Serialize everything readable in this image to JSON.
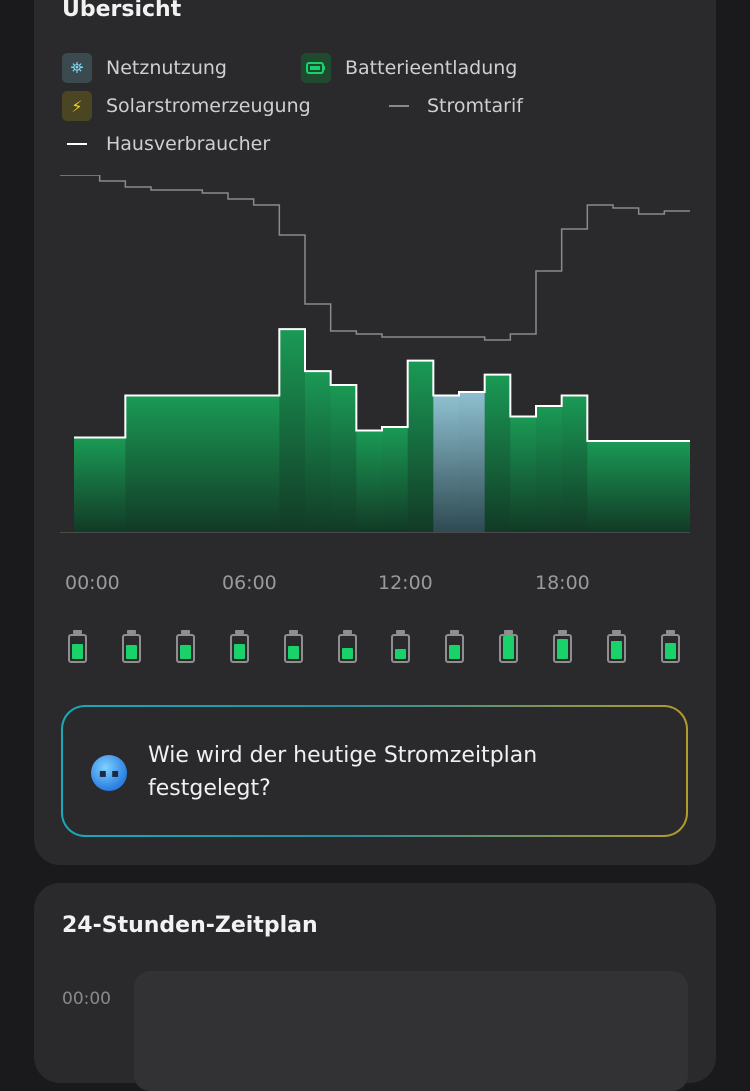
{
  "overview": {
    "title": "Übersicht",
    "legend": [
      {
        "label": "Netznutzung",
        "icon": "grid-tower-icon",
        "color": "#7fd8f0",
        "bg": "#3a4a4f"
      },
      {
        "label": "Batterieentladung",
        "icon": "battery-icon",
        "color": "#19d36a",
        "bg": "#1f4a30"
      },
      {
        "label": "Solarstromerzeugung",
        "icon": "lightning-icon",
        "color": "#f0d23a",
        "bg": "#4a4523"
      },
      {
        "label": "Stromtarif",
        "icon": "gray-line-icon",
        "color": "#8a8a8a"
      },
      {
        "label": "Hausverbraucher",
        "icon": "white-line-icon",
        "color": "#ffffff"
      }
    ],
    "ticks": [
      "00:00",
      "06:00",
      "12:00",
      "18:00"
    ],
    "battery_levels": [
      0.6,
      0.55,
      0.55,
      0.6,
      0.5,
      0.45,
      0.4,
      0.55,
      0.9,
      0.8,
      0.7,
      0.65
    ],
    "colors": {
      "green": "#19d36a",
      "grid_blue": "#8fc7d9",
      "tariff": "#8a8a8a",
      "consumer": "#ffffff"
    },
    "ai_prompt": "Wie wird der heutige Stromzeitplan festgelegt?"
  },
  "schedule": {
    "title": "24-Stunden-Zeitplan",
    "first_time": "00:00"
  },
  "chart_data": {
    "type": "area",
    "x_range": [
      0,
      24
    ],
    "x_ticks": [
      "00:00",
      "06:00",
      "12:00",
      "18:00"
    ],
    "consumption_steps": [
      0.27,
      0.27,
      0.39,
      0.39,
      0.39,
      0.39,
      0.39,
      0.39,
      0.58,
      0.46,
      0.42,
      0.29,
      0.3,
      0.49,
      0.39,
      0.4,
      0.45,
      0.33,
      0.36,
      0.39,
      0.26,
      0.26,
      0.26,
      0.26
    ],
    "source_grid_hours": [
      14,
      15
    ],
    "tariff_steps": [
      1.0,
      0.98,
      0.96,
      0.95,
      0.95,
      0.94,
      0.92,
      0.9,
      0.8,
      0.57,
      0.48,
      0.47,
      0.46,
      0.46,
      0.46,
      0.46,
      0.45,
      0.47,
      0.68,
      0.82,
      0.9,
      0.89,
      0.87,
      0.88
    ]
  }
}
